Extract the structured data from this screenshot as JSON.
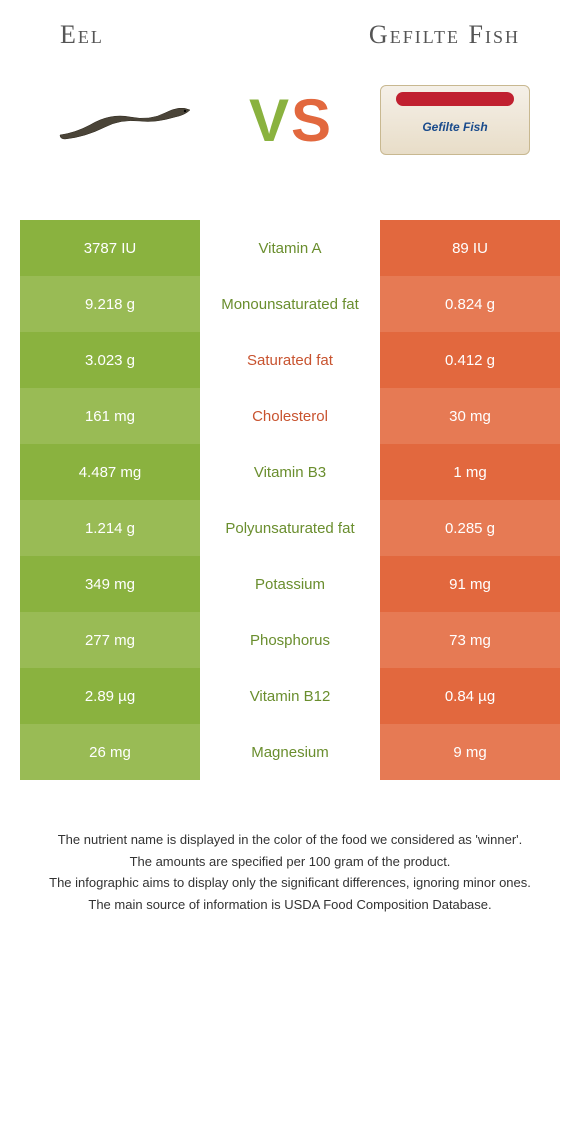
{
  "header": {
    "left_title": "Eel",
    "right_title": "Gefilte Fish"
  },
  "vs": {
    "v": "V",
    "s": "S"
  },
  "package_label": "Gefilte Fish",
  "colors": {
    "green_primary": "#8ab23f",
    "green_alt": "#99bb55",
    "orange_primary": "#e2683e",
    "orange_alt": "#e67a54",
    "mid_green_text": "#6a8e2e",
    "mid_orange_text": "#c8532f",
    "background": "#ffffff"
  },
  "table": {
    "rows": [
      {
        "left": "3787 IU",
        "nutrient": "Vitamin A",
        "right": "89 IU",
        "winner": "left"
      },
      {
        "left": "9.218 g",
        "nutrient": "Monounsaturated fat",
        "right": "0.824 g",
        "winner": "left"
      },
      {
        "left": "3.023 g",
        "nutrient": "Saturated fat",
        "right": "0.412 g",
        "winner": "right"
      },
      {
        "left": "161 mg",
        "nutrient": "Cholesterol",
        "right": "30 mg",
        "winner": "right"
      },
      {
        "left": "4.487 mg",
        "nutrient": "Vitamin B3",
        "right": "1 mg",
        "winner": "left"
      },
      {
        "left": "1.214 g",
        "nutrient": "Polyunsaturated fat",
        "right": "0.285 g",
        "winner": "left"
      },
      {
        "left": "349 mg",
        "nutrient": "Potassium",
        "right": "91 mg",
        "winner": "left"
      },
      {
        "left": "277 mg",
        "nutrient": "Phosphorus",
        "right": "73 mg",
        "winner": "left"
      },
      {
        "left": "2.89 µg",
        "nutrient": "Vitamin B12",
        "right": "0.84 µg",
        "winner": "left"
      },
      {
        "left": "26 mg",
        "nutrient": "Magnesium",
        "right": "9 mg",
        "winner": "left"
      }
    ]
  },
  "footnotes": [
    "The nutrient name is displayed in the color of the food we considered as 'winner'.",
    "The amounts are specified per 100 gram of the product.",
    "The infographic aims to display only the significant differences, ignoring minor ones.",
    "The main source of information is USDA Food Composition Database."
  ]
}
